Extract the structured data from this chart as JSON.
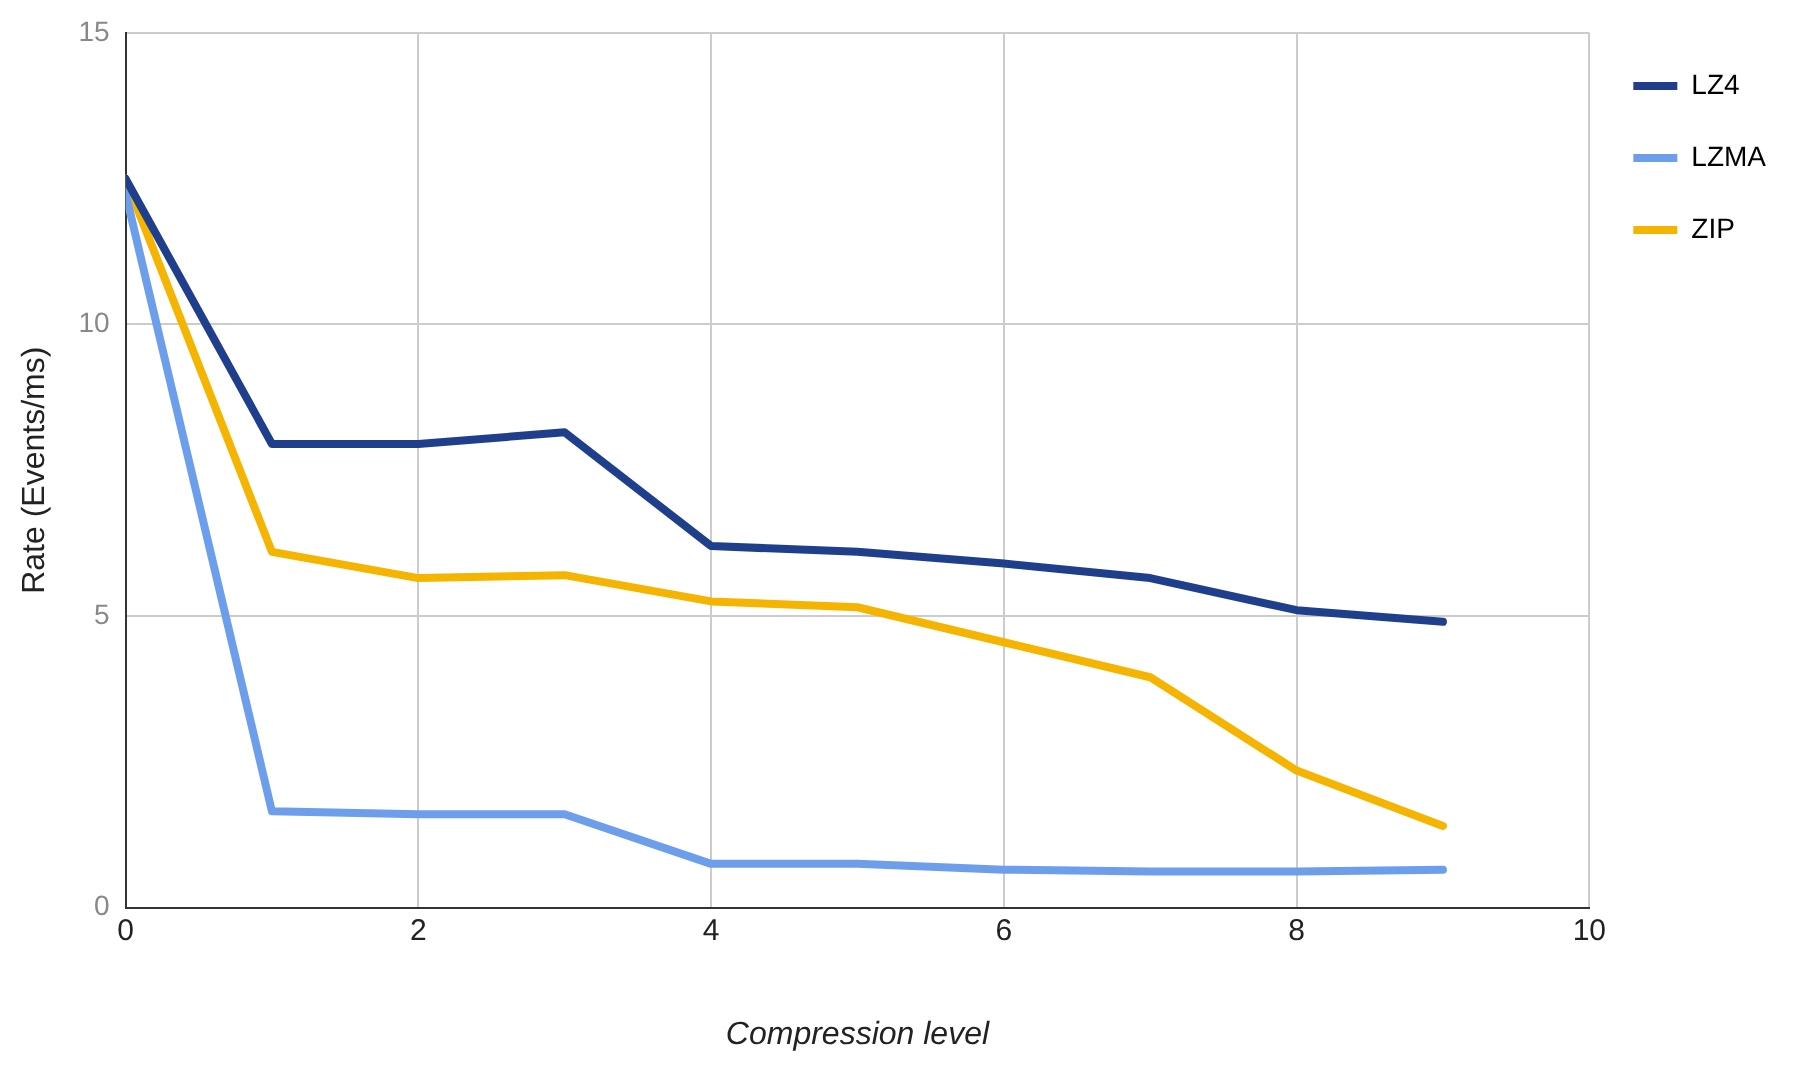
{
  "chart_data": {
    "type": "line",
    "xlabel": "Compression level",
    "ylabel": "Rate (Events/ms)",
    "x": [
      0,
      1,
      2,
      3,
      4,
      5,
      6,
      7,
      8,
      9
    ],
    "series": [
      {
        "name": "LZ4",
        "color": "#1f3f8c",
        "values": [
          12.5,
          7.95,
          7.95,
          8.15,
          6.2,
          6.1,
          5.9,
          5.65,
          5.1,
          4.9
        ]
      },
      {
        "name": "LZMA",
        "color": "#6d9eeb",
        "values": [
          12.25,
          1.65,
          1.6,
          1.6,
          0.75,
          0.75,
          0.65,
          0.62,
          0.62,
          0.65
        ]
      },
      {
        "name": "ZIP",
        "color": "#f4b400",
        "values": [
          12.5,
          6.1,
          5.65,
          5.7,
          5.25,
          5.15,
          4.55,
          3.95,
          2.35,
          1.4
        ]
      }
    ],
    "xlim": [
      0,
      10
    ],
    "xticks": [
      0,
      2,
      4,
      6,
      8,
      10
    ],
    "ylim": [
      0,
      15
    ],
    "yticks": [
      0,
      5,
      10,
      15
    ],
    "grid": true,
    "legend": "top right",
    "marker": "none",
    "line_style": "solid"
  }
}
